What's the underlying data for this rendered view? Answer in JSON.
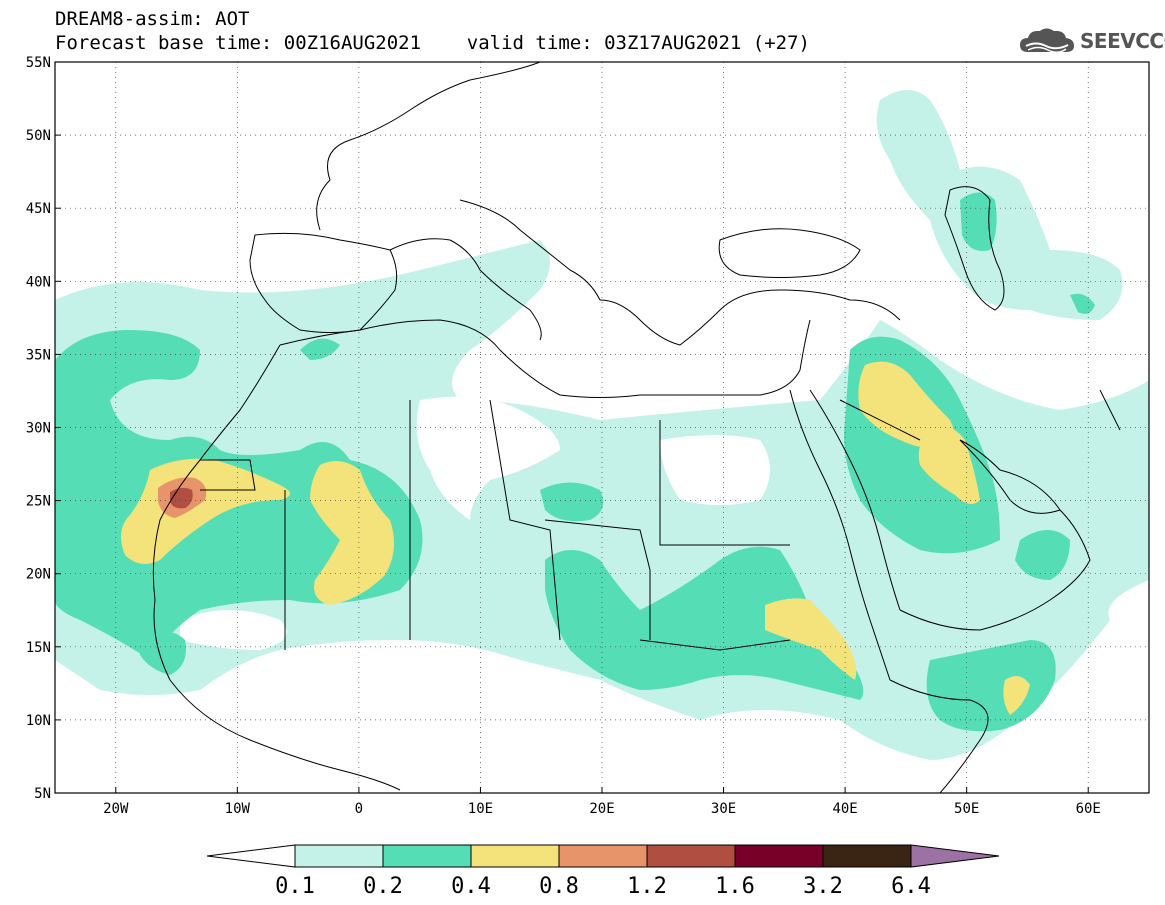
{
  "header": {
    "line1": "DREAM8-assim: AOT",
    "line2": "Forecast base time: 00Z16AUG2021    valid time: 03Z17AUG2021 (+27)"
  },
  "logo": {
    "text": "SEEVCCC",
    "icon": "cloud-logo-icon"
  },
  "map": {
    "lon_range": [
      -25,
      65
    ],
    "lat_range": [
      5,
      55
    ],
    "lat_ticks": [
      {
        "value": 55,
        "label": "55N"
      },
      {
        "value": 50,
        "label": "50N"
      },
      {
        "value": 45,
        "label": "45N"
      },
      {
        "value": 40,
        "label": "40N"
      },
      {
        "value": 35,
        "label": "35N"
      },
      {
        "value": 30,
        "label": "30N"
      },
      {
        "value": 25,
        "label": "25N"
      },
      {
        "value": 20,
        "label": "20N"
      },
      {
        "value": 15,
        "label": "15N"
      },
      {
        "value": 10,
        "label": "10N"
      },
      {
        "value": 5,
        "label": "5N"
      }
    ],
    "lon_ticks": [
      {
        "value": -20,
        "label": "20W"
      },
      {
        "value": -10,
        "label": "10W"
      },
      {
        "value": 0,
        "label": "0"
      },
      {
        "value": 10,
        "label": "10E"
      },
      {
        "value": 20,
        "label": "20E"
      },
      {
        "value": 30,
        "label": "30E"
      },
      {
        "value": 40,
        "label": "40E"
      },
      {
        "value": 50,
        "label": "50E"
      },
      {
        "value": 60,
        "label": "60E"
      }
    ],
    "grid": true
  },
  "colorbar": {
    "levels": [
      "0.1",
      "0.2",
      "0.4",
      "0.8",
      "1.2",
      "1.6",
      "3.2",
      "6.4"
    ],
    "colors": [
      "#ffffff",
      "#c4f2e9",
      "#55deb6",
      "#f4e27a",
      "#e8946a",
      "#b04e41",
      "#780028",
      "#3a2515",
      "#9c72a4"
    ]
  },
  "colors": {
    "c01": "#c4f2e9",
    "c02": "#55deb6",
    "c04": "#f4e27a",
    "c08": "#e8946a",
    "c12": "#b04e41"
  }
}
